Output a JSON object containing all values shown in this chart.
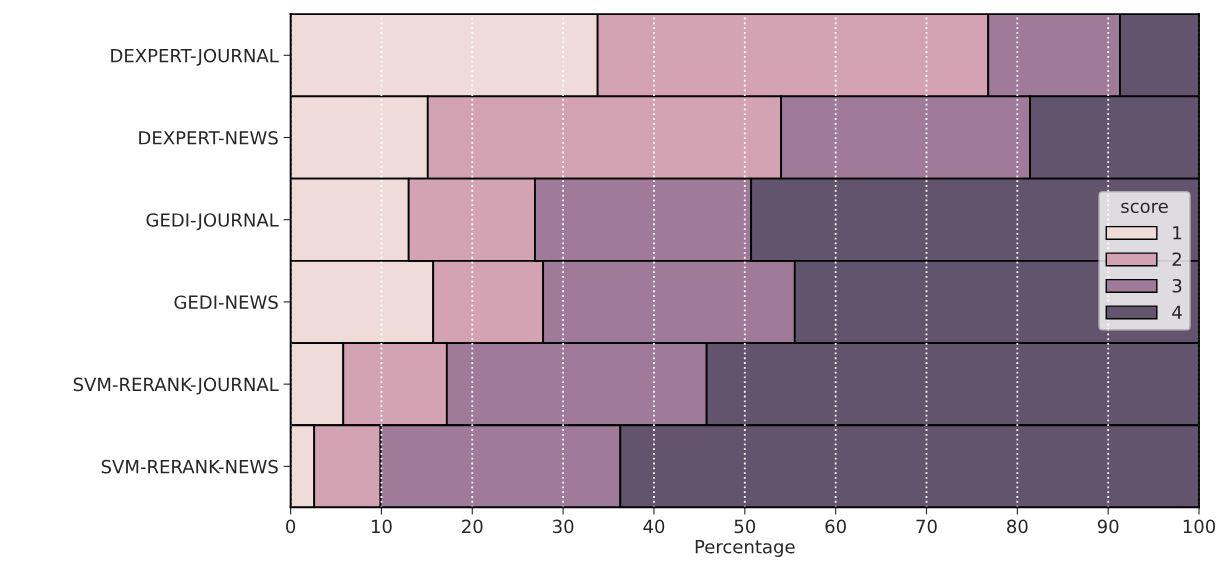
{
  "chart_data": {
    "type": "bar",
    "orientation": "horizontal",
    "stacked": true,
    "xlabel": "Percentage",
    "legend_title": "score",
    "legend": "right",
    "grid": "x",
    "categories": [
      "DEXPERT-JOURNAL",
      "DEXPERT-NEWS",
      "GEDI-JOURNAL",
      "GEDI-NEWS",
      "SVM-RERANK-JOURNAL",
      "SVM-RERANK-NEWS"
    ],
    "series": [
      {
        "name": "1",
        "color": "#efdbd8",
        "values": [
          33.8,
          15.1,
          13.0,
          15.7,
          5.8,
          2.6
        ]
      },
      {
        "name": "2",
        "color": "#d4a3b3",
        "values": [
          43.0,
          38.9,
          13.9,
          12.1,
          11.4,
          7.3
        ]
      },
      {
        "name": "3",
        "color": "#a07a99",
        "values": [
          14.5,
          27.4,
          23.8,
          27.7,
          28.6,
          26.4
        ]
      },
      {
        "name": "4",
        "color": "#62546d",
        "values": [
          8.7,
          18.6,
          49.3,
          44.5,
          54.2,
          63.7
        ]
      }
    ],
    "xlim": [
      0,
      100
    ],
    "xticks": [
      0,
      10,
      20,
      30,
      40,
      50,
      60,
      70,
      80,
      90,
      100
    ]
  }
}
